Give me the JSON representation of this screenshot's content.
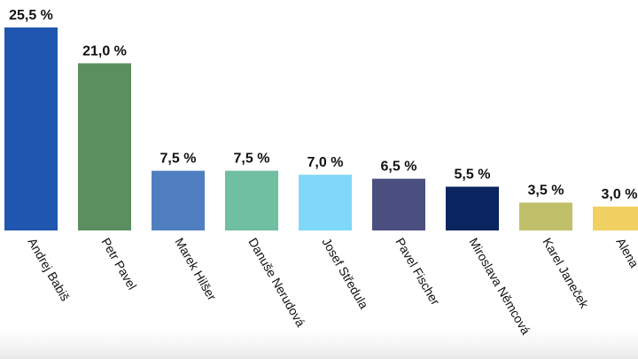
{
  "chart_data": {
    "type": "bar",
    "categories": [
      "Andrej Babiš",
      "Petr Pavel",
      "Marek Hilšer",
      "Danuše Nerudová",
      "Josef Středula",
      "Pavel Fischer",
      "Miroslava Němcová",
      "Karel Janeček",
      "Alena"
    ],
    "values": [
      25.5,
      21.0,
      7.5,
      7.5,
      7.0,
      6.5,
      5.5,
      3.5,
      3.0
    ],
    "value_labels": [
      "25,5 %",
      "21,0 %",
      "7,5 %",
      "7,5 %",
      "7,0 %",
      "6,5 %",
      "5,5 %",
      "3,5 %",
      "3,0 %"
    ],
    "colors": [
      "#1f57b0",
      "#5b8f5f",
      "#4f7fc0",
      "#6fbfa0",
      "#7fd8f8",
      "#4a4f80",
      "#0a2560",
      "#c0c06a",
      "#f0d060"
    ]
  }
}
